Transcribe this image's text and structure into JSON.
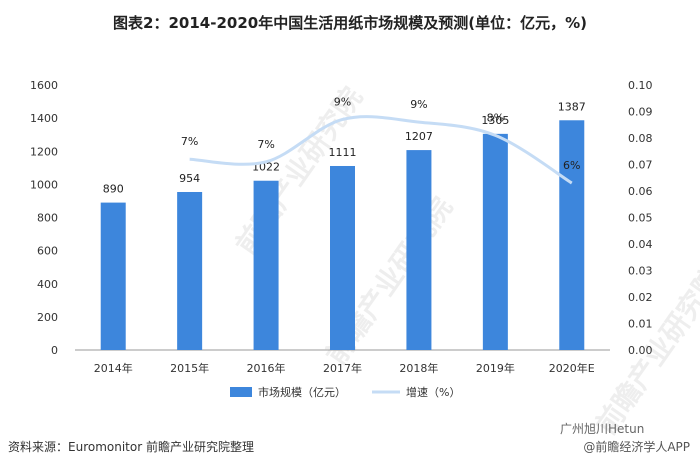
{
  "title": "图表2：2014-2020年中国生活用纸市场规模及预测(单位：亿元，%)",
  "chart_data": {
    "type": "bar+line",
    "title": "图表2：2014-2020年中国生活用纸市场规模及预测(单位：亿元，%)",
    "categories": [
      "2014年",
      "2015年",
      "2016年",
      "2017年",
      "2018年",
      "2019年",
      "2020年E"
    ],
    "series": [
      {
        "name": "市场规模（亿元）",
        "type": "bar",
        "axis": "left",
        "values": [
          890,
          954,
          1022,
          1111,
          1207,
          1305,
          1387
        ]
      },
      {
        "name": "增速（%）",
        "type": "line",
        "axis": "right",
        "values": [
          null,
          0.072,
          0.071,
          0.087,
          0.086,
          0.081,
          0.063
        ],
        "labels": [
          "",
          "7%",
          "7%",
          "9%",
          "9%",
          "8%",
          "6%"
        ]
      }
    ],
    "ylim_left": [
      0,
      1600
    ],
    "yticks_left": [
      0,
      200,
      400,
      600,
      800,
      1000,
      1200,
      1400,
      1600
    ],
    "ylim_right": [
      0,
      0.1
    ],
    "yticks_right": [
      "0.00",
      "0.01",
      "0.02",
      "0.03",
      "0.04",
      "0.05",
      "0.06",
      "0.07",
      "0.08",
      "0.09",
      "0.10"
    ],
    "legend_position": "bottom",
    "colors": {
      "bar": "#3d86dc",
      "line": "#c5dcf5"
    }
  },
  "footer": {
    "source": "资料来源：Euromonitor 前瞻产业研究院整理",
    "brand_mid": "广州旭川Hetun",
    "brand_right": "@前瞻经济学人APP"
  },
  "watermark": "前瞻产业研究院"
}
